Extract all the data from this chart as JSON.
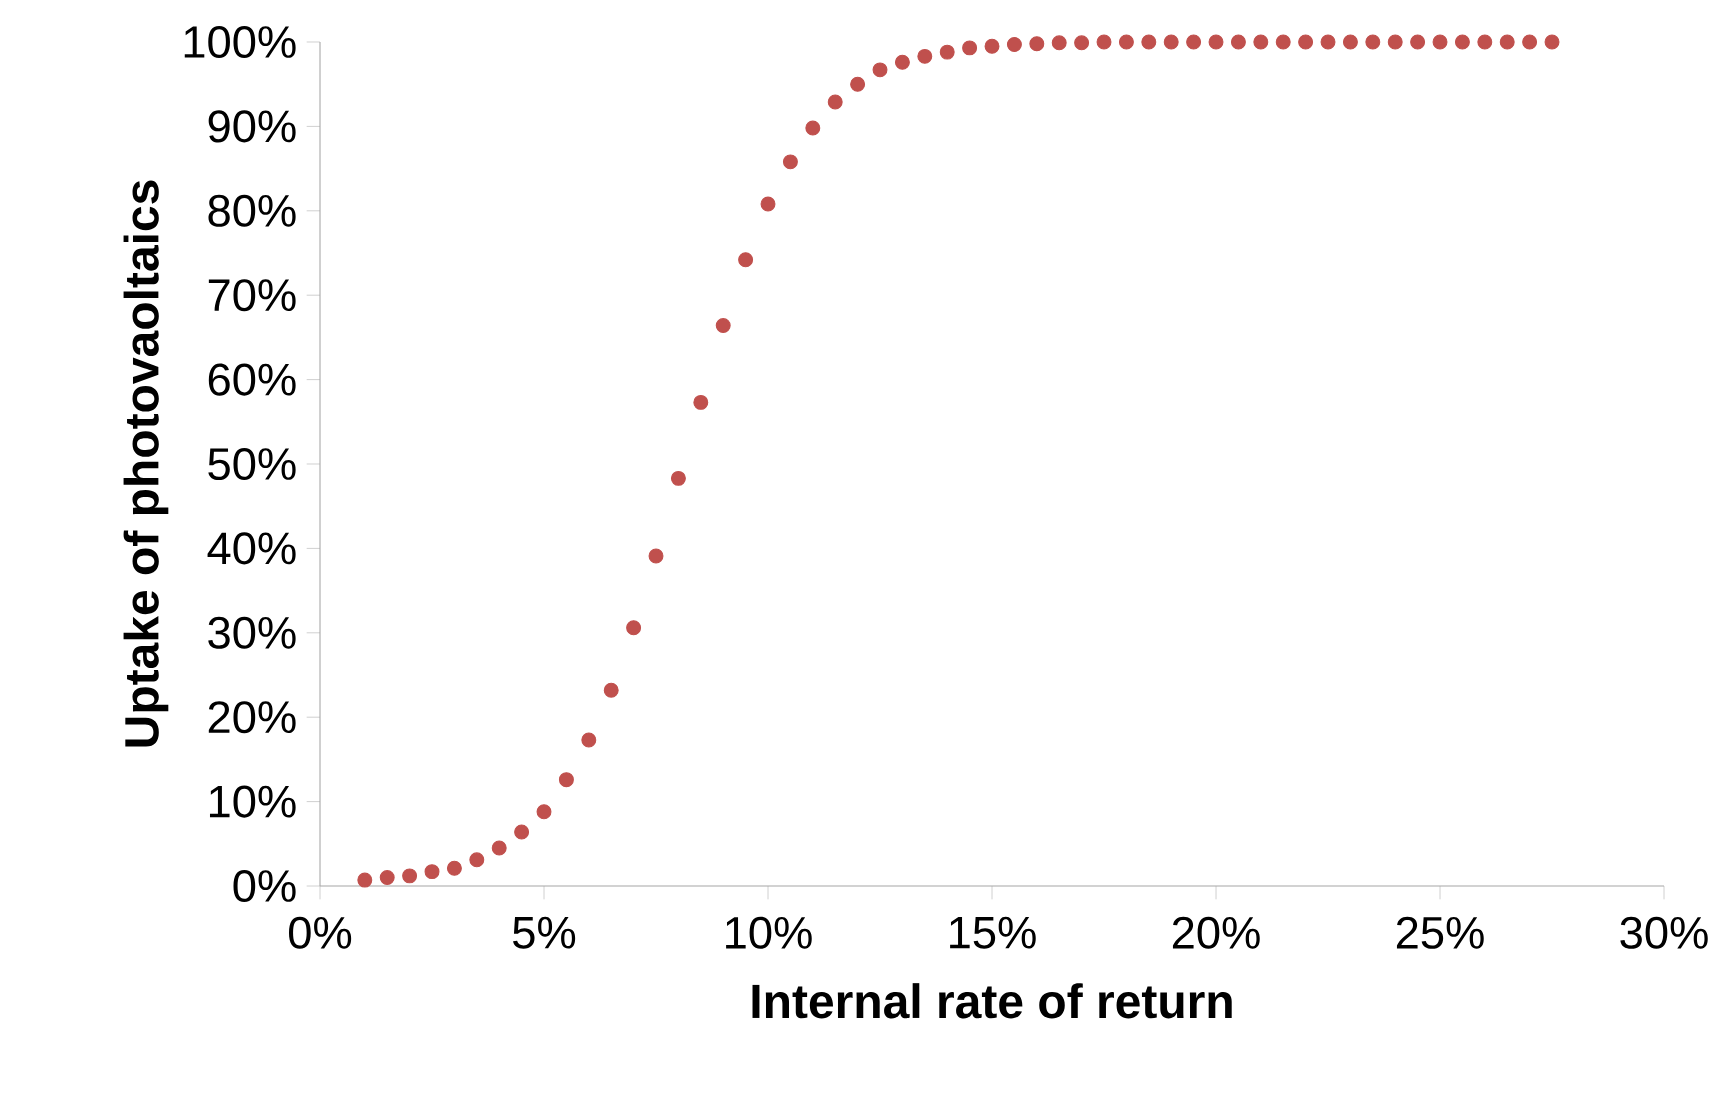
{
  "chart_data": {
    "type": "scatter",
    "xlabel": "Internal rate of return",
    "ylabel": "Uptake of photovaoltaics",
    "x": [
      1,
      1.5,
      2,
      2.5,
      3,
      3.5,
      4,
      4.5,
      5,
      5.5,
      6,
      6.5,
      7,
      7.5,
      8,
      8.5,
      9,
      9.5,
      10,
      10.5,
      11,
      11.5,
      12,
      12.5,
      13,
      13.5,
      14,
      14.5,
      15,
      15.5,
      16,
      16.5,
      17,
      17.5,
      18,
      18.5,
      19,
      19.5,
      20,
      20.5,
      21,
      21.5,
      22,
      22.5,
      23,
      23.5,
      24,
      24.5,
      25,
      25.5,
      26,
      26.5,
      27,
      27.5
    ],
    "series": [
      {
        "color": "#c0504d",
        "values": [
          0.7,
          1.0,
          1.2,
          1.7,
          2.1,
          3.1,
          4.5,
          6.4,
          8.8,
          12.6,
          17.3,
          23.2,
          30.6,
          39.1,
          48.3,
          57.3,
          66.4,
          74.2,
          80.8,
          85.8,
          89.8,
          92.9,
          95.0,
          96.7,
          97.6,
          98.3,
          98.8,
          99.3,
          99.5,
          99.7,
          99.8,
          99.9,
          99.9,
          100,
          100,
          100,
          100,
          100,
          100,
          100,
          100,
          100,
          100,
          100,
          100,
          100,
          100,
          100,
          100,
          100,
          100,
          100,
          100,
          100
        ]
      }
    ],
    "xlim": [
      0,
      30
    ],
    "ylim": [
      0,
      100
    ],
    "xticks": [
      {
        "value": 0,
        "label": "0%"
      },
      {
        "value": 5,
        "label": "5%"
      },
      {
        "value": 10,
        "label": "10%"
      },
      {
        "value": 15,
        "label": "15%"
      },
      {
        "value": 20,
        "label": "20%"
      },
      {
        "value": 25,
        "label": "25%"
      },
      {
        "value": 30,
        "label": "30%"
      }
    ],
    "yticks": [
      {
        "value": 0,
        "label": "0%"
      },
      {
        "value": 10,
        "label": "10%"
      },
      {
        "value": 20,
        "label": "20%"
      },
      {
        "value": 30,
        "label": "30%"
      },
      {
        "value": 40,
        "label": "40%"
      },
      {
        "value": 50,
        "label": "50%"
      },
      {
        "value": 60,
        "label": "60%"
      },
      {
        "value": 70,
        "label": "70%"
      },
      {
        "value": 80,
        "label": "80%"
      },
      {
        "value": 90,
        "label": "90%"
      },
      {
        "value": 100,
        "label": "100%"
      }
    ],
    "grid": false
  }
}
